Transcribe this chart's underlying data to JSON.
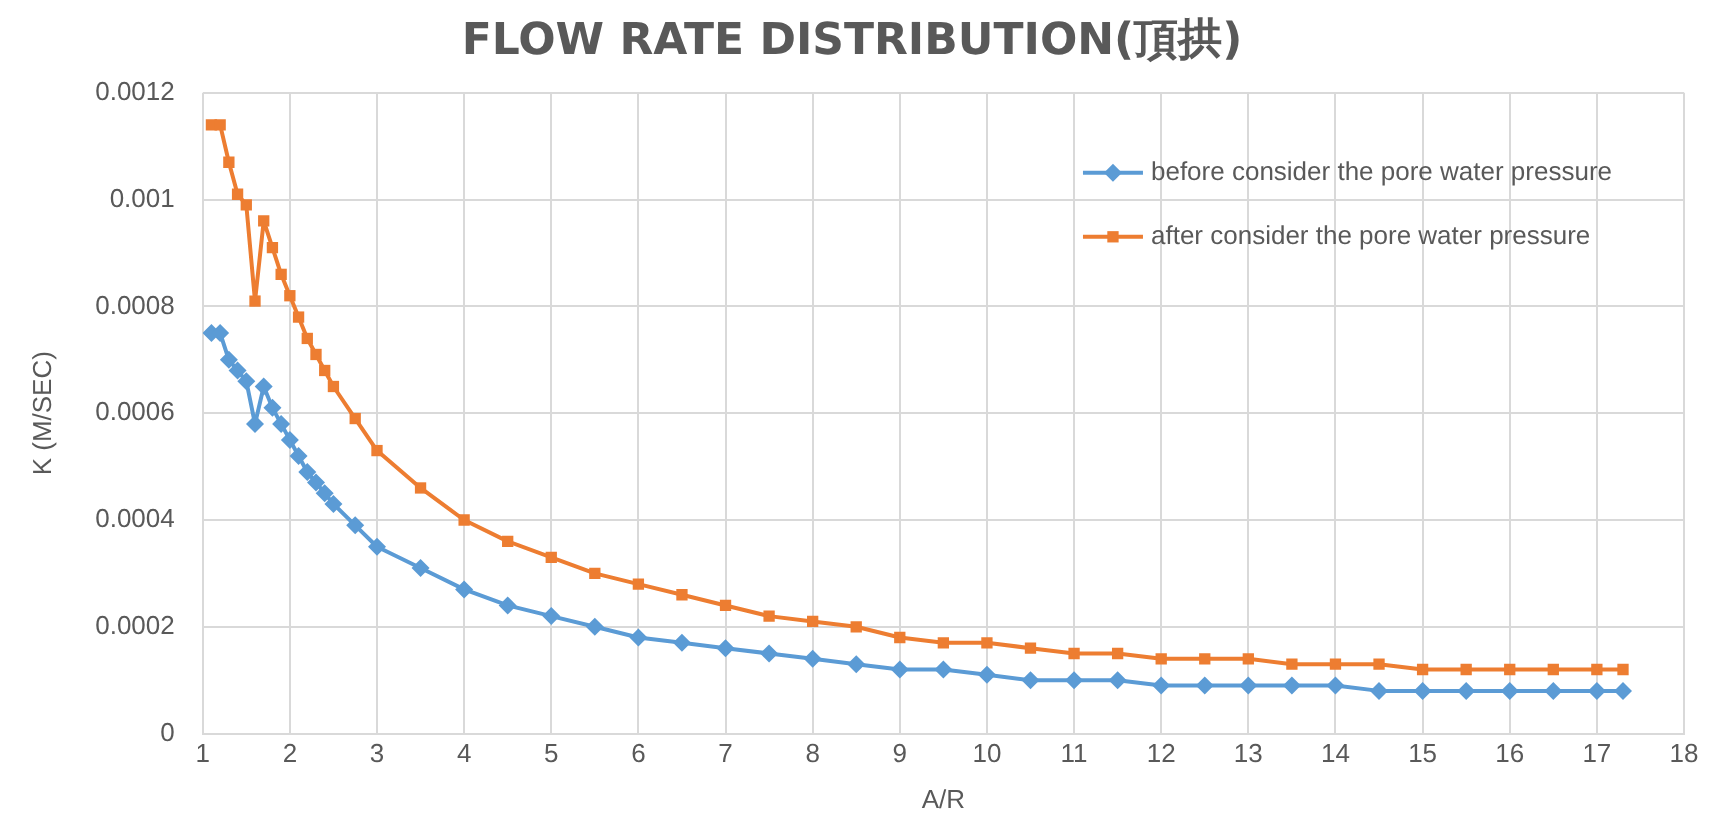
{
  "chart_data": {
    "type": "line",
    "title": "FLOW RATE DISTRIBUTION(頂拱)",
    "xlabel": "A/R",
    "ylabel": "K (M/SEC)",
    "xlim": [
      1,
      18
    ],
    "xticks": [
      1,
      2,
      3,
      4,
      5,
      6,
      7,
      8,
      9,
      10,
      11,
      12,
      13,
      14,
      15,
      16,
      17,
      18
    ],
    "ylim": [
      0,
      0.0012
    ],
    "yticks": [
      0,
      0.0002,
      0.0004,
      0.0006,
      0.0008,
      0.001,
      0.0012
    ],
    "grid": true,
    "legend": "top right",
    "x": [
      1.1,
      1.2,
      1.3,
      1.4,
      1.5,
      1.6,
      1.7,
      1.8,
      1.9,
      2.0,
      2.1,
      2.2,
      2.3,
      2.4,
      2.5,
      2.75,
      3,
      3.5,
      4,
      4.5,
      5,
      5.5,
      6,
      6.5,
      7,
      7.5,
      8,
      8.5,
      9,
      9.5,
      10,
      10.5,
      11,
      11.5,
      12,
      12.5,
      13,
      13.5,
      14,
      14.5,
      15,
      15.5,
      16,
      16.5,
      17,
      17.3
    ],
    "series": [
      {
        "name": "before consider the pore water pressure",
        "color": "#5b9bd5",
        "marker": "diamond",
        "values": [
          0.00075,
          0.00075,
          0.0007,
          0.00068,
          0.00066,
          0.00058,
          0.00065,
          0.00061,
          0.00058,
          0.00055,
          0.00052,
          0.00049,
          0.00047,
          0.00045,
          0.00043,
          0.00039,
          0.00035,
          0.00031,
          0.00027,
          0.00024,
          0.00022,
          0.0002,
          0.00018,
          0.00017,
          0.00016,
          0.00015,
          0.00014,
          0.00013,
          0.00012,
          0.00012,
          0.00011,
          0.0001,
          0.0001,
          0.0001,
          9e-05,
          9e-05,
          9e-05,
          9e-05,
          9e-05,
          8e-05,
          8e-05,
          8e-05,
          8e-05,
          8e-05,
          8e-05,
          8e-05
        ]
      },
      {
        "name": "after consider the pore water pressure",
        "color": "#ed7d31",
        "marker": "square",
        "values": [
          0.00114,
          0.00114,
          0.00107,
          0.00101,
          0.00099,
          0.00081,
          0.00096,
          0.00091,
          0.00086,
          0.00082,
          0.00078,
          0.00074,
          0.00071,
          0.00068,
          0.00065,
          0.00059,
          0.00053,
          0.00046,
          0.0004,
          0.00036,
          0.00033,
          0.0003,
          0.00028,
          0.00026,
          0.00024,
          0.00022,
          0.00021,
          0.0002,
          0.00018,
          0.00017,
          0.00017,
          0.00016,
          0.00015,
          0.00015,
          0.00014,
          0.00014,
          0.00014,
          0.00013,
          0.00013,
          0.00013,
          0.00012,
          0.00012,
          0.00012,
          0.00012,
          0.00012,
          0.00012
        ]
      }
    ]
  }
}
